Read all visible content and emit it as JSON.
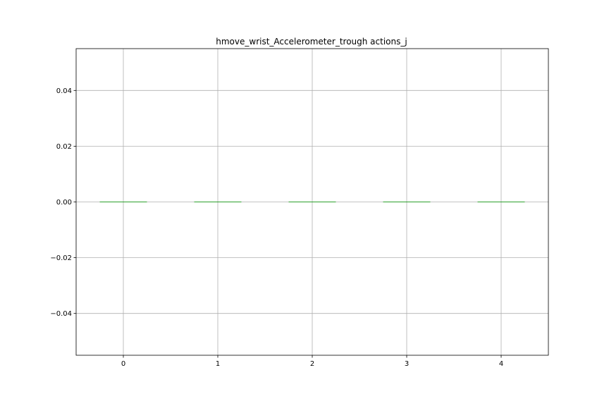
{
  "chart_data": {
    "type": "box",
    "title": "hmove_wrist_Accelerometer_trough actions_j",
    "xlabel": "",
    "ylabel": "",
    "categories": [
      "0",
      "1",
      "2",
      "3",
      "4"
    ],
    "series": [
      {
        "values": [
          {
            "min": 0.0,
            "q1": 0.0,
            "median": 0.0,
            "q3": 0.0,
            "max": 0.0
          },
          {
            "min": 0.0,
            "q1": 0.0,
            "median": 0.0,
            "q3": 0.0,
            "max": 0.0
          },
          {
            "min": 0.0,
            "q1": 0.0,
            "median": 0.0,
            "q3": 0.0,
            "max": 0.0
          },
          {
            "min": 0.0,
            "q1": 0.0,
            "median": 0.0,
            "q3": 0.0,
            "max": 0.0
          },
          {
            "min": 0.0,
            "q1": 0.0,
            "median": 0.0,
            "q3": 0.0,
            "max": 0.0
          }
        ]
      }
    ],
    "ylim": [
      -0.055,
      0.055
    ],
    "yticks": [
      0.04,
      0.02,
      0.0,
      -0.02,
      -0.04
    ],
    "ytick_labels": [
      "0.04",
      "0.02",
      "0.00",
      "−0.02",
      "−0.04"
    ],
    "xlim": [
      -0.5,
      4.5
    ],
    "grid": true,
    "legend": "none",
    "colors": {
      "median": "#2ca02c",
      "grid": "#b0b0b0",
      "axes": "#000000"
    }
  }
}
